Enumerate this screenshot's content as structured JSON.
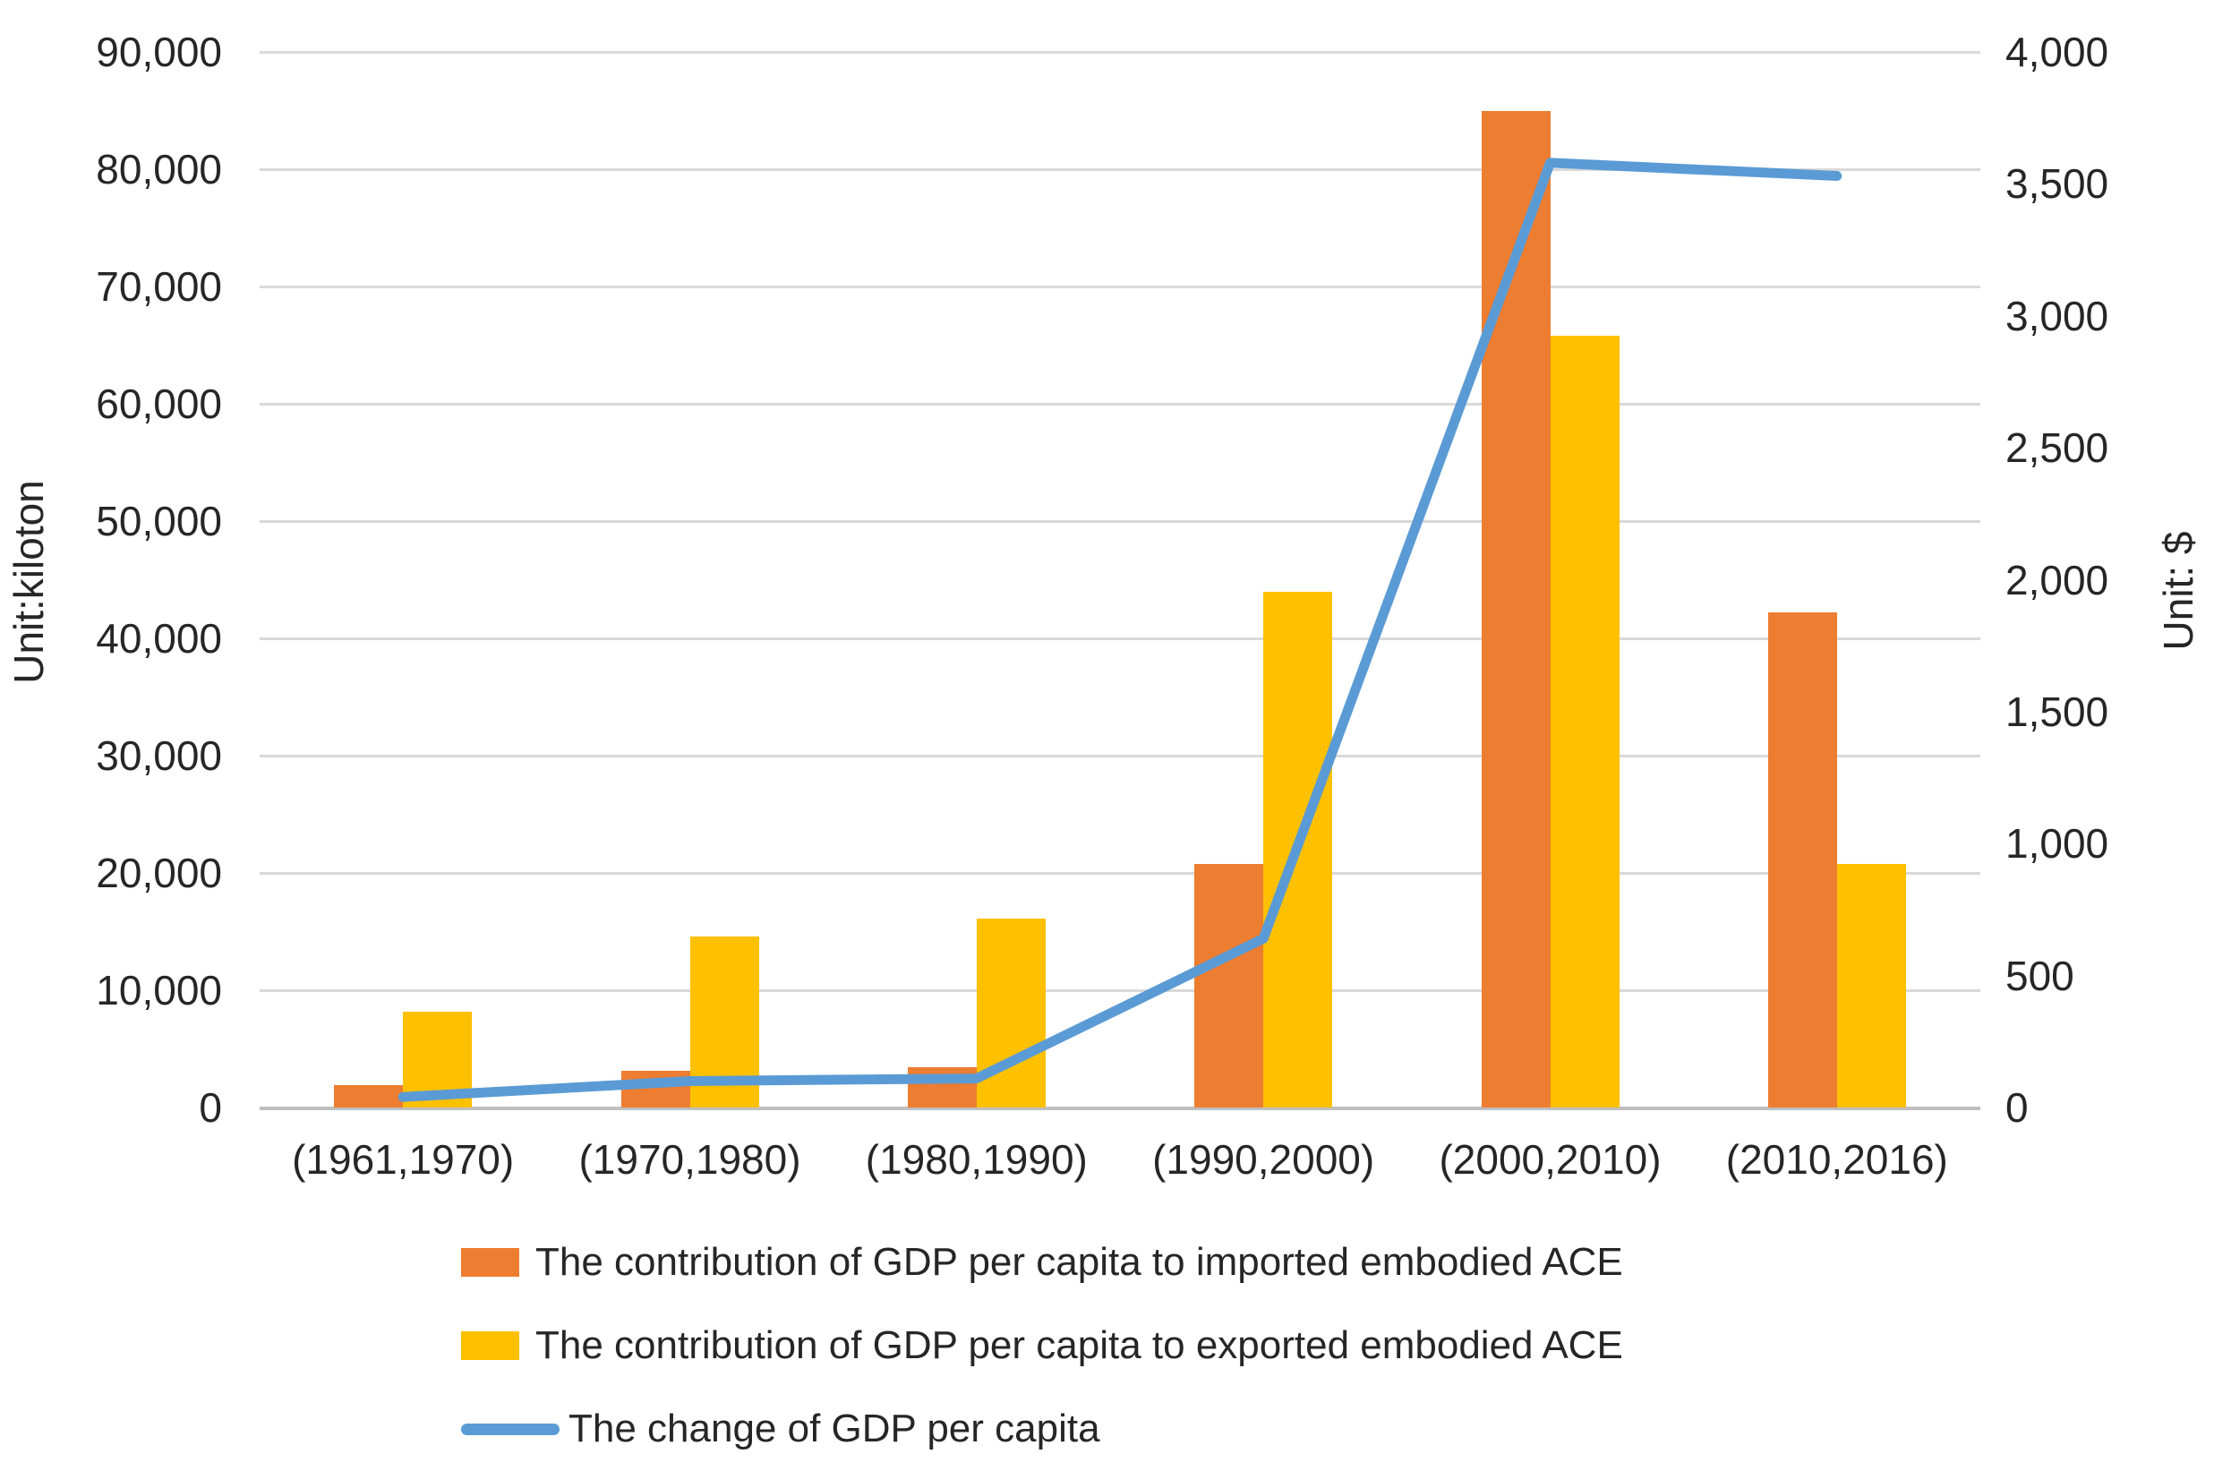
{
  "figure": {
    "background_color": "#ffffff",
    "text_color": "#262626",
    "gridline_color": "#d9d9d9",
    "axis_line_color": "#bfbfbf"
  },
  "chart_data": {
    "type": "bar",
    "subtype": "combo bar+line, dual y-axes",
    "title": "",
    "grid": "horizontal gridlines on",
    "legend_position": "bottom-left",
    "categories": [
      "(1961,1970)",
      "(1970,1980)",
      "(1980,1990)",
      "(1990,2000)",
      "(2000,2010)",
      "(2010,2016)"
    ],
    "series": [
      {
        "name": "The contribution of GDP per capita to imported embodied ACE",
        "type": "bar",
        "axis": "left",
        "color": "#ED7D31",
        "values": [
          1900,
          3100,
          3400,
          20800,
          85000,
          42200
        ]
      },
      {
        "name": "The contribution of GDP per capita to exported embodied ACE",
        "type": "bar",
        "axis": "left",
        "color": "#FFC000",
        "values": [
          8200,
          14600,
          16100,
          44000,
          65800,
          20800
        ]
      },
      {
        "name": "The change of GDP per capita",
        "type": "line",
        "axis": "right",
        "color": "#5B9BD5",
        "values": [
          40,
          100,
          110,
          640,
          3580,
          3530
        ]
      }
    ],
    "left_axis": {
      "title": "Unit:kiloton",
      "min": 0,
      "max": 90000,
      "step": 10000,
      "tick_labels": [
        "0",
        "10,000",
        "20,000",
        "30,000",
        "40,000",
        "50,000",
        "60,000",
        "70,000",
        "80,000",
        "90,000"
      ]
    },
    "right_axis": {
      "title": "Unit:  $",
      "min": 0,
      "max": 4000,
      "step": 500,
      "tick_labels": [
        "0",
        "500",
        "1,000",
        "1,500",
        "2,000",
        "2,500",
        "3,000",
        "3,500",
        "4,000"
      ]
    }
  },
  "legend": {
    "items": [
      {
        "marker": "rect",
        "color": "#ED7D31",
        "label": "The contribution of GDP per capita to imported embodied ACE"
      },
      {
        "marker": "rect",
        "color": "#FFC000",
        "label": "The contribution of GDP per capita to exported embodied ACE"
      },
      {
        "marker": "line",
        "color": "#5B9BD5",
        "label": "The change of GDP per capita"
      }
    ]
  }
}
